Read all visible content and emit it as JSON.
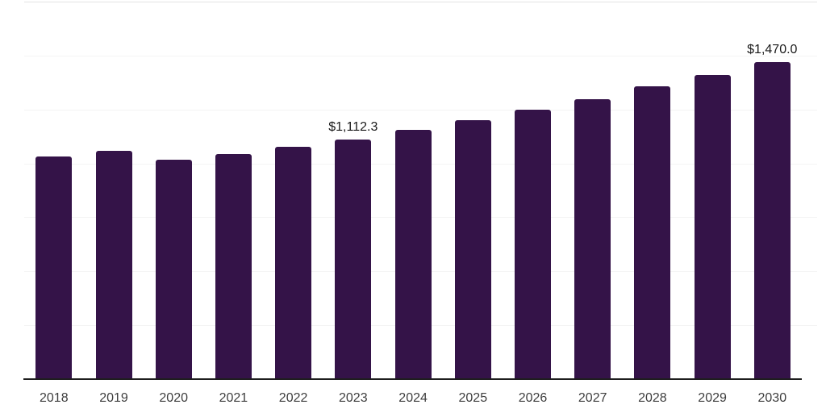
{
  "chart_data": {
    "type": "bar",
    "categories": [
      "2018",
      "2019",
      "2020",
      "2021",
      "2022",
      "2023",
      "2024",
      "2025",
      "2026",
      "2027",
      "2028",
      "2029",
      "2030"
    ],
    "values": [
      1034,
      1059,
      1019,
      1044,
      1078,
      1112.3,
      1154,
      1199,
      1249,
      1297,
      1357,
      1411,
      1470
    ],
    "data_labels": {
      "2023": "$1,112.3",
      "2030": "$1,470.0"
    },
    "title": "",
    "xlabel": "",
    "ylabel": "",
    "ylim": [
      0,
      1750
    ],
    "gridline_step": 250,
    "grid": true,
    "legend": false,
    "colors": {
      "bar": "#341348",
      "axis_line": "#1e1e1e",
      "tick_label": "#3d3d3d",
      "data_label": "#1a1a1a",
      "gridline": "#f4f4f4",
      "gridline_top": "#e3e3e3",
      "background": "#ffffff"
    }
  }
}
